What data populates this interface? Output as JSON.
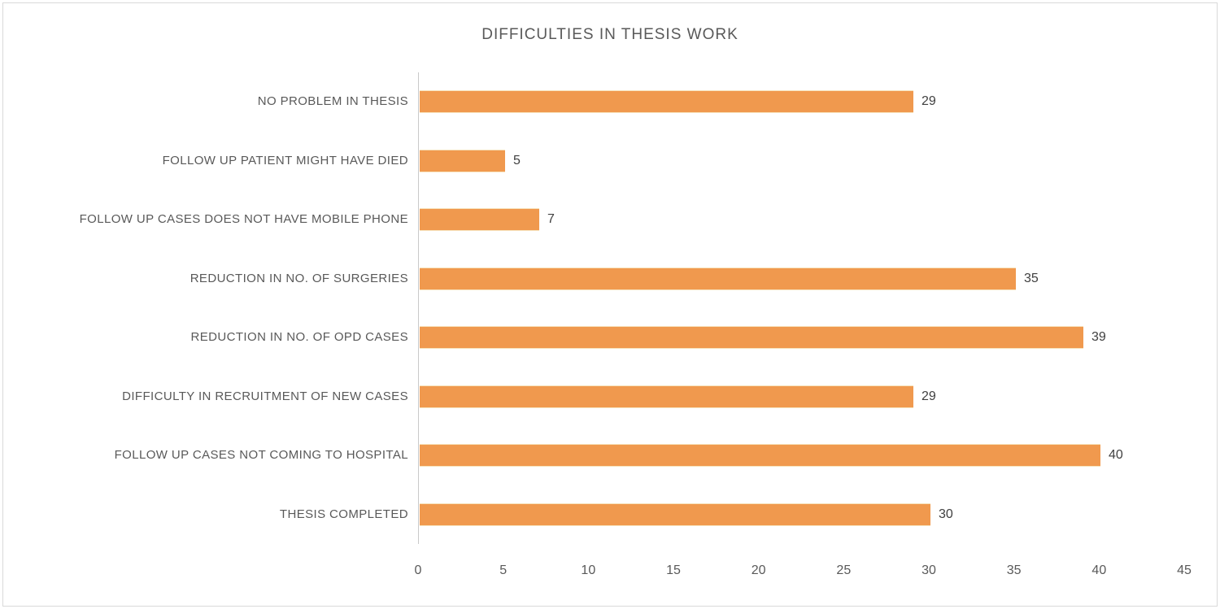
{
  "chart_data": {
    "type": "bar",
    "orientation": "horizontal",
    "title": "DIFFICULTIES IN THESIS WORK",
    "categories": [
      "NO PROBLEM IN THESIS",
      "FOLLOW UP PATIENT MIGHT HAVE DIED",
      "FOLLOW UP CASES DOES NOT HAVE MOBILE PHONE",
      "REDUCTION IN NO. OF SURGERIES",
      "REDUCTION IN NO. OF OPD CASES",
      "DIFFICULTY IN RECRUITMENT OF NEW CASES",
      "FOLLOW UP CASES NOT COMING TO HOSPITAL",
      "THESIS COMPLETED"
    ],
    "values": [
      29,
      5,
      7,
      35,
      39,
      29,
      40,
      30
    ],
    "data_labels": [
      29,
      5,
      7,
      35,
      39,
      29,
      40,
      30
    ],
    "xlabel": "",
    "ylabel": "",
    "xlim": [
      0,
      45
    ],
    "x_ticks": [
      0,
      5,
      10,
      15,
      20,
      25,
      30,
      35,
      40,
      45
    ],
    "grid": false,
    "legend": false,
    "colors": {
      "bar": "#f0994e",
      "bar_edge": "#f7e3bd",
      "title_text": "#595959",
      "category_text": "#595959",
      "value_text": "#404040",
      "axis_line": "#c9c9c9",
      "chart_border": "#d9d9d9"
    }
  }
}
